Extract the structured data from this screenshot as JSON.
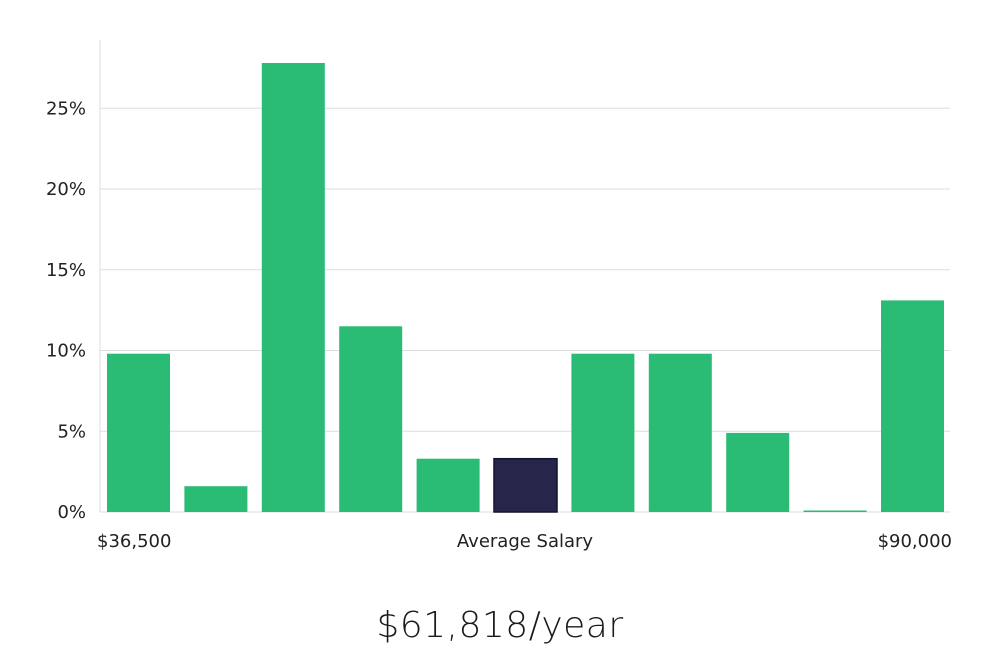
{
  "chart_data": {
    "type": "bar",
    "x_axis": {
      "min_label": "$36,500",
      "center_label": "Average Salary",
      "max_label": "$90,000"
    },
    "y_ticks": [
      "0%",
      "5%",
      "10%",
      "15%",
      "20%",
      "25%"
    ],
    "ylim": [
      0,
      28
    ],
    "values": [
      9.8,
      1.6,
      27.8,
      11.5,
      3.3,
      3.3,
      9.8,
      9.8,
      4.9,
      0,
      13.1
    ],
    "highlight_index": 5,
    "colors": {
      "bar": "#2abb74",
      "highlight": "#27254a",
      "grid": "#dddddd"
    },
    "grid": true
  },
  "headline": {
    "salary": "$61,818/year"
  }
}
